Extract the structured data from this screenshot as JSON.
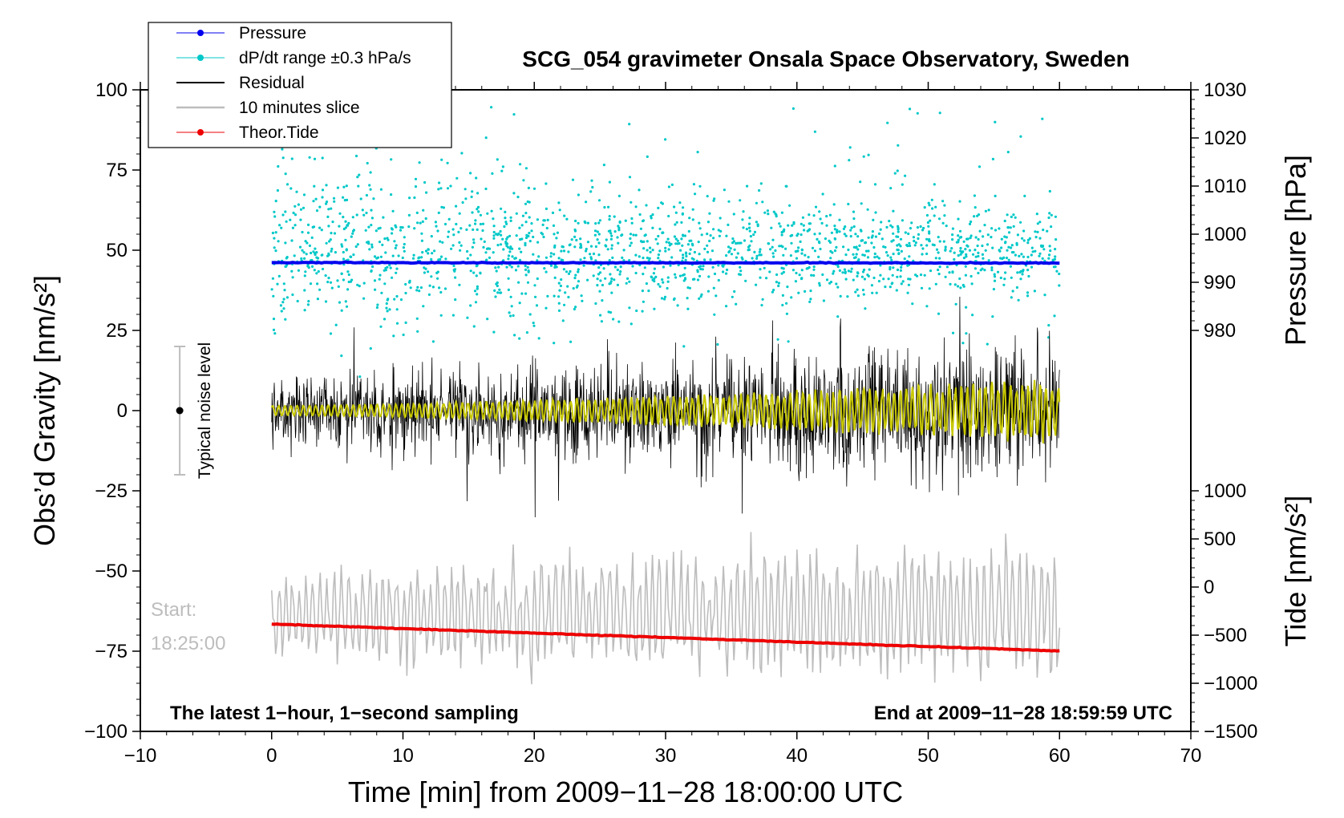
{
  "chart_data": {
    "type": "line",
    "title": "SCG_054 gravimeter Onsala Space Observatory, Sweden",
    "xlabel": "Time [min] from 2009−11−28 18:00:00 UTC",
    "ylabel_left": "Obs’d Gravity [nm/s²]",
    "ylabel_right_top": "Pressure [hPa]",
    "ylabel_right_bottom": "Tide [nm/s²]",
    "xlim": [
      -10,
      70
    ],
    "ylim_left": [
      -100,
      100
    ],
    "ylim_pressure": [
      980,
      1030
    ],
    "ylim_tide": [
      -1500,
      1000
    ],
    "x_ticks": [
      "−10",
      "0",
      "10",
      "20",
      "30",
      "40",
      "50",
      "60",
      "70"
    ],
    "y_left_ticks": [
      "100",
      "75",
      "50",
      "25",
      "0",
      "−25",
      "−50",
      "−75",
      "−100"
    ],
    "pressure_ticks": [
      "1030",
      "1020",
      "1010",
      "1000",
      "990",
      "980"
    ],
    "tide_ticks": [
      "1000",
      "500",
      "0",
      "−500",
      "−1000",
      "−1500"
    ],
    "legend": [
      "Pressure",
      "dP/dt range ±0.3 hPa/s",
      "Residual",
      "10 minutes slice",
      "Theor.Tide"
    ],
    "annotations": {
      "bottom_left": "The latest 1−hour, 1−second sampling",
      "bottom_right": "End at 2009−11−28 18:59:59 UTC",
      "start_label": "Start:",
      "start_time": "18:25:00",
      "noise_label": "Typical noise level"
    },
    "colors": {
      "pressure": "#0000ee",
      "dpdt": "#00c8c8",
      "residual": "#000000",
      "slice": "#bdbdbd",
      "tide": "#ee0000",
      "smooth": "#c8c800"
    },
    "series": [
      {
        "name": "Pressure",
        "axis": "pressure",
        "x": [
          0,
          60
        ],
        "values": [
          994.1,
          994.0
        ]
      },
      {
        "name": "Theor.Tide",
        "axis": "tide",
        "x": [
          0,
          60
        ],
        "values": [
          -385,
          -665
        ]
      },
      {
        "name": "Residual",
        "axis": "left",
        "x_range": [
          0,
          60
        ],
        "center": 0,
        "approx_amplitude": 15
      },
      {
        "name": "10 minutes slice",
        "axis": "left",
        "x_range": [
          0,
          60
        ],
        "center": -63,
        "approx_amplitude": 15
      },
      {
        "name": "dP/dt range ±0.3 hPa/s",
        "axis": "left",
        "x_range": [
          0,
          60
        ],
        "center": 50,
        "approx_amplitude": 22
      }
    ],
    "noise_bar": {
      "x": -7,
      "center": 0,
      "low": -20,
      "high": 20
    }
  }
}
